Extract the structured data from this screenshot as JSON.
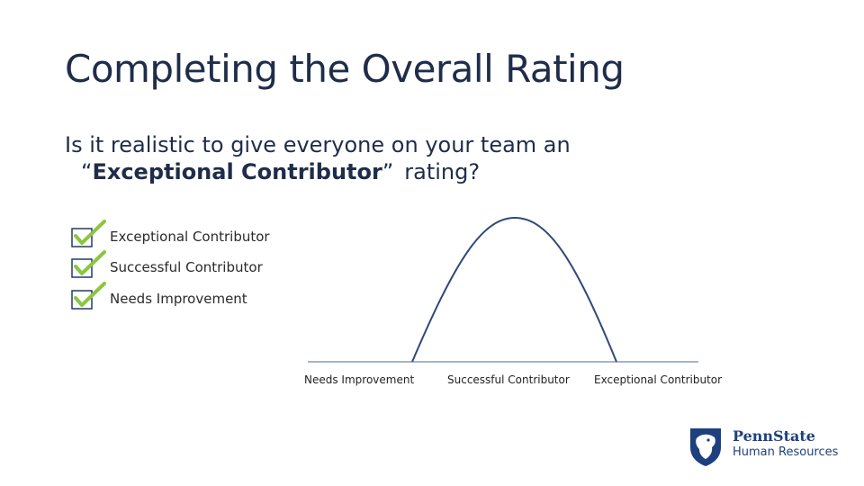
{
  "slide": {
    "title": "Completing the Overall Rating",
    "question": {
      "line1": "Is it realistic to give everyone on your team an",
      "line2_open": "“",
      "line2_bold": "Exceptional Contributor",
      "line2_close": "”",
      "line2_end": "rating?"
    },
    "checklist": [
      {
        "label": "Exceptional Contributor",
        "checked": true
      },
      {
        "label": "Successful Contributor",
        "checked": true
      },
      {
        "label": "Needs Improvement",
        "checked": true
      }
    ],
    "axis_labels": [
      "Needs Improvement",
      "Successful Contributor",
      "Exceptional Contributor"
    ],
    "logo": {
      "name": "PennState",
      "unit": "Human Resources"
    }
  },
  "colors": {
    "title": "#1f2d4a",
    "check_green": "#8cc63f",
    "box_blue": "#1f3b6e",
    "curve": "#2e4a7a",
    "brand_navy": "#1e407c"
  }
}
